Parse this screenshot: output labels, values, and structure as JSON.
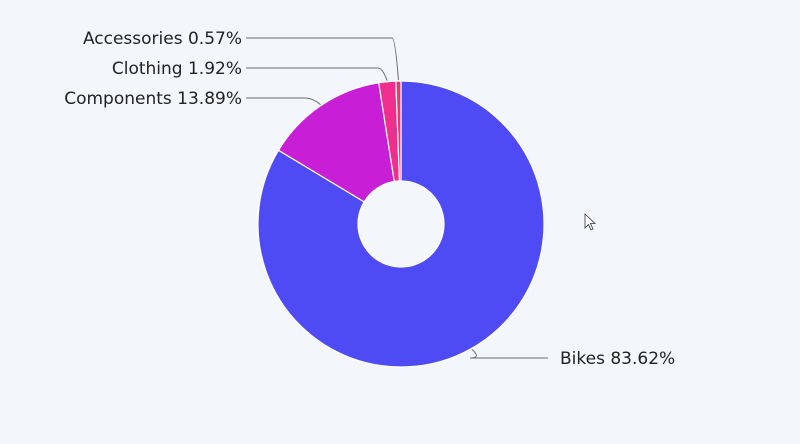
{
  "chart_data": {
    "type": "pie",
    "donut": true,
    "categories": [
      "Bikes",
      "Components",
      "Clothing",
      "Accessories"
    ],
    "values": [
      83.62,
      13.89,
      1.92,
      0.57
    ],
    "labels": [
      "Bikes 83.62%",
      "Components 13.89%",
      "Clothing 1.92%",
      "Accessories 0.57%"
    ],
    "colors": [
      "#4f4bf4",
      "#c81ed6",
      "#ef2f8d",
      "#e23a6a"
    ]
  }
}
